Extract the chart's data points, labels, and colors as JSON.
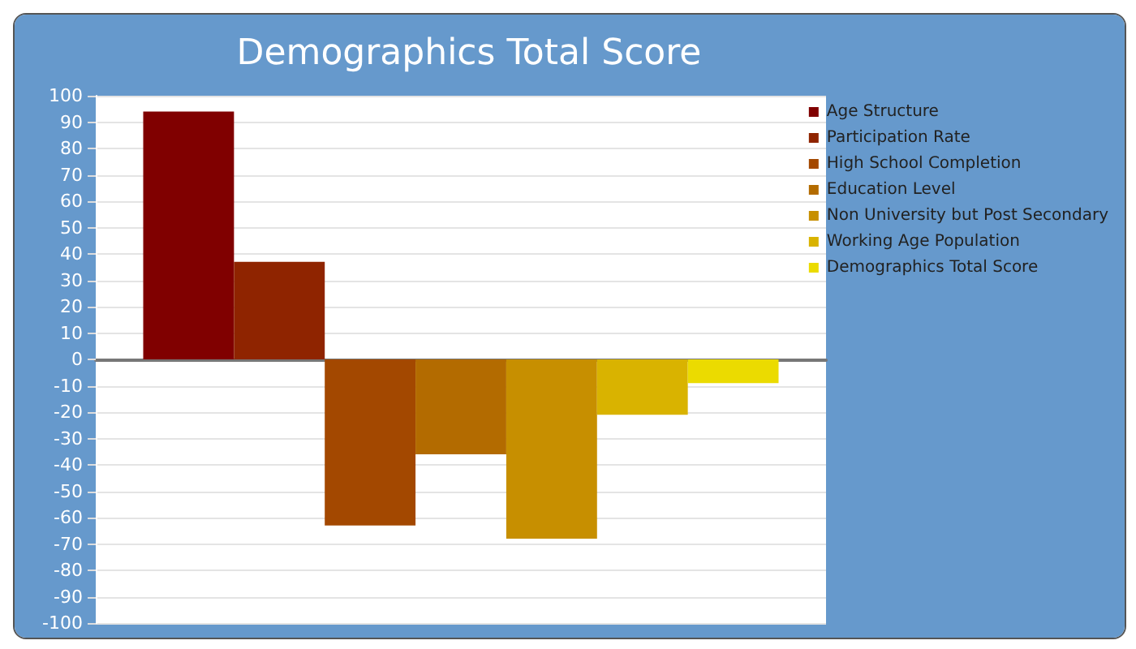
{
  "chart_data": {
    "type": "bar",
    "title": "Demographics Total Score",
    "categories": [
      null
    ],
    "series": [
      {
        "name": "Age Structure",
        "color": "#800000",
        "values": [
          94
        ]
      },
      {
        "name": "Participation Rate",
        "color": "#8f2400",
        "values": [
          37
        ]
      },
      {
        "name": "High School Completion",
        "color": "#a34800",
        "values": [
          -63
        ]
      },
      {
        "name": "Education Level",
        "color": "#b36b00",
        "values": [
          -36
        ]
      },
      {
        "name": "Non University but Post Secondary",
        "color": "#c78f00",
        "values": [
          -68
        ]
      },
      {
        "name": "Working Age Population",
        "color": "#d9b300",
        "values": [
          -21
        ]
      },
      {
        "name": "Demographics Total Score",
        "color": "#ebdb00",
        "values": [
          -9
        ]
      }
    ],
    "ylim": [
      -100,
      100
    ],
    "yticks": [
      -100,
      -90,
      -80,
      -70,
      -60,
      -50,
      -40,
      -30,
      -20,
      -10,
      0,
      10,
      20,
      30,
      40,
      50,
      60,
      70,
      80,
      90,
      100
    ],
    "grid": "y",
    "legend": "top right"
  }
}
